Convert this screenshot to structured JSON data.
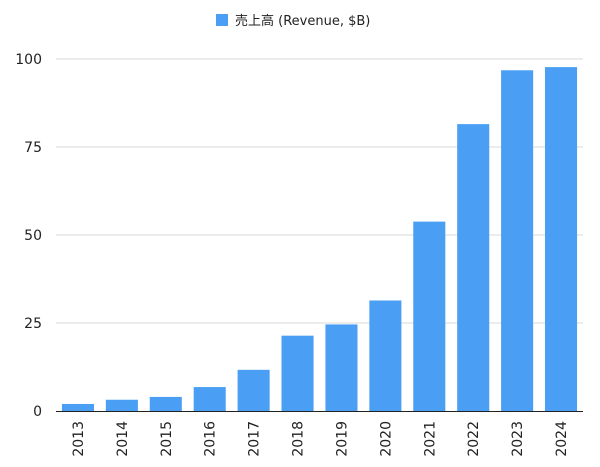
{
  "chart_data": {
    "type": "bar",
    "categories": [
      "2013",
      "2014",
      "2015",
      "2016",
      "2017",
      "2018",
      "2019",
      "2020",
      "2021",
      "2022",
      "2023",
      "2024"
    ],
    "series": [
      {
        "name": "売上高 (Revenue, $B)",
        "values": [
          2.0,
          3.2,
          4.0,
          6.8,
          11.7,
          21.4,
          24.6,
          31.4,
          53.8,
          81.5,
          96.8,
          97.7
        ],
        "color": "#4a9ff5"
      }
    ],
    "yticks": [
      "0",
      "25",
      "50",
      "75",
      "100"
    ],
    "ylim": [
      0,
      100
    ],
    "grid": true,
    "legend_position": "top-center"
  }
}
